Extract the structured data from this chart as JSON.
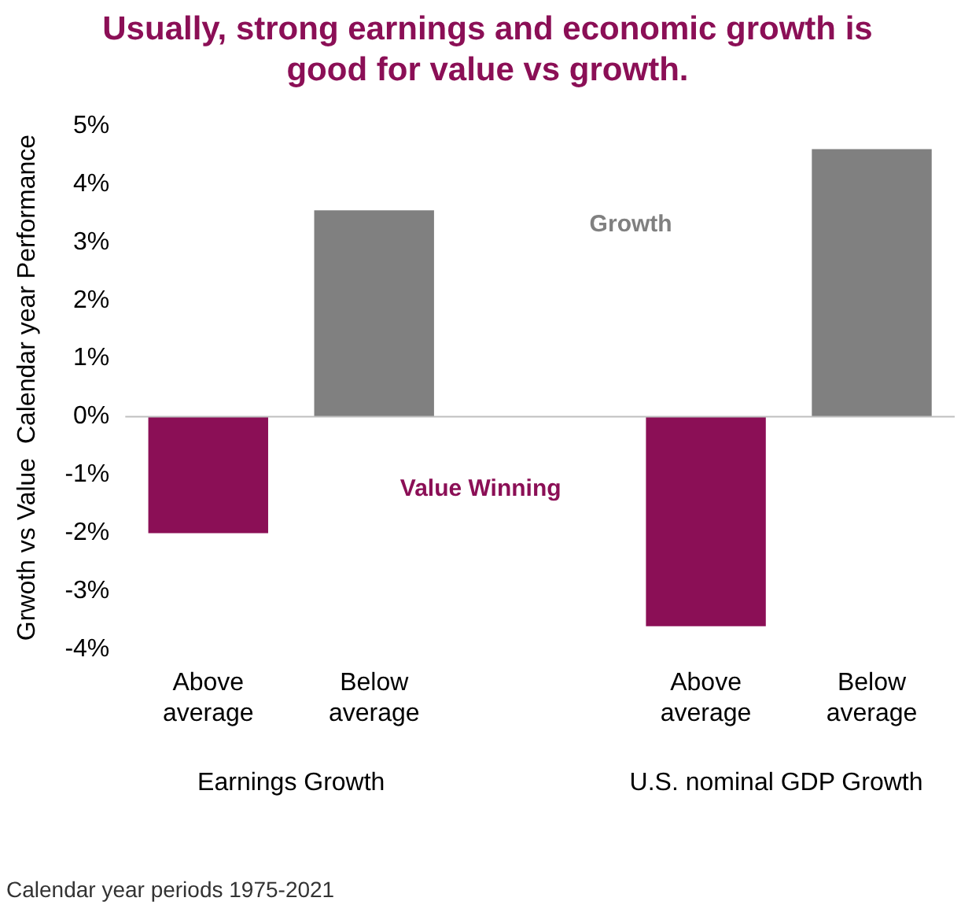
{
  "chart_data": {
    "type": "bar",
    "title": "Usually, strong earnings and economic growth is good for value vs growth.",
    "ylabel": "Grwoth vs Value  Calendar year Performance",
    "categories": [
      "Above average",
      "Below average",
      null,
      "Above average",
      "Below average"
    ],
    "values": [
      -2.0,
      3.55,
      null,
      -3.6,
      4.6
    ],
    "colors": [
      "#8b0f56",
      "#808080",
      "#808080",
      "#8b0f56",
      "#808080"
    ],
    "ylim": [
      -4,
      5
    ],
    "yticks": [
      {
        "value": -4,
        "label": "-4%"
      },
      {
        "value": -3,
        "label": "-3%"
      },
      {
        "value": -2,
        "label": "-2%"
      },
      {
        "value": -1,
        "label": "-1%"
      },
      {
        "value": 0,
        "label": "0%"
      },
      {
        "value": 1,
        "label": "1%"
      },
      {
        "value": 2,
        "label": "2%"
      },
      {
        "value": 3,
        "label": "3%"
      },
      {
        "value": 4,
        "label": "4%"
      },
      {
        "value": 5,
        "label": "5%"
      }
    ],
    "grid": false,
    "legend": false,
    "ref_lines": [
      {
        "axis": "y",
        "value": 0,
        "color": "#bfbfbf"
      }
    ],
    "annotations": [
      "Growth",
      "Value Winning",
      "Earnings Growth",
      "U.S. nominal GDP Growth",
      "Calendar year periods 1975-2021"
    ]
  }
}
